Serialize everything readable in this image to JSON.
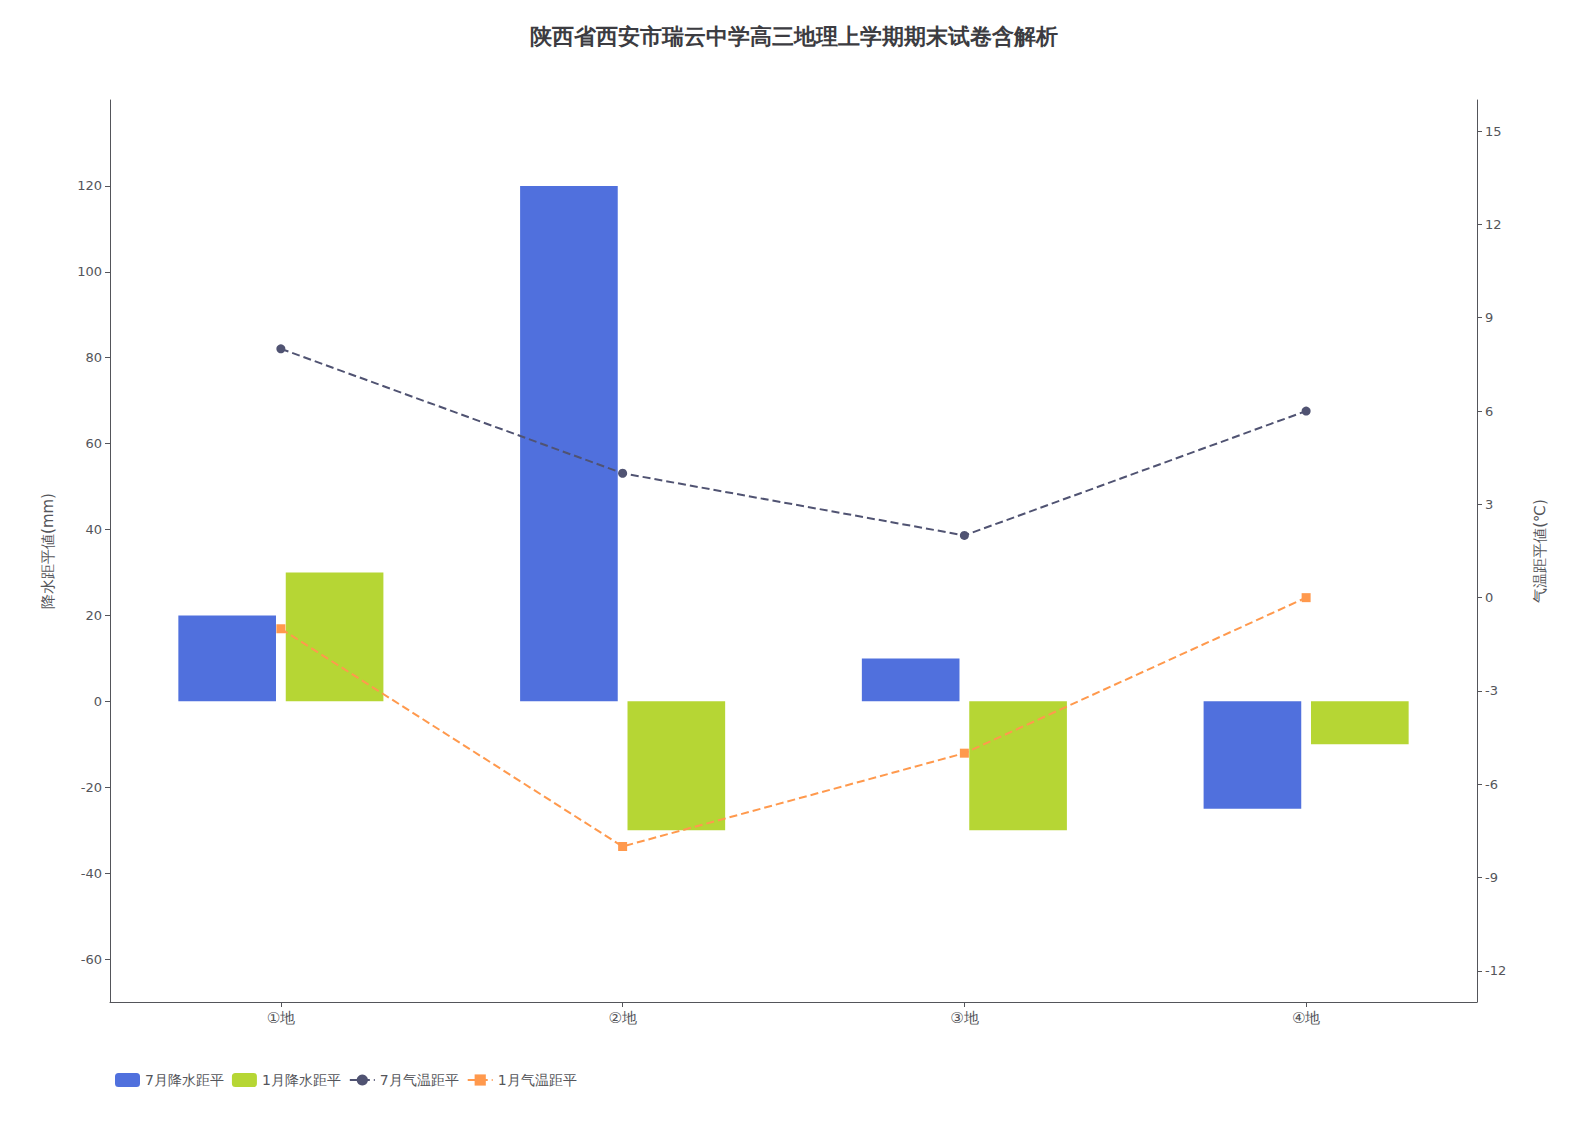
{
  "chart_data": {
    "type": "bar",
    "title": "陕西省西安市瑞云中学高三地理上学期期末试卷含解析",
    "categories": [
      "①地",
      "②地",
      "③地",
      "④地"
    ],
    "series": [
      {
        "name": "7月降水距平",
        "type": "bar",
        "values": [
          20,
          120,
          10,
          -25
        ]
      },
      {
        "name": "1月降水距平",
        "type": "bar",
        "values": [
          30,
          -30,
          -30,
          -10
        ]
      },
      {
        "name": "7月气温距平",
        "type": "line",
        "axis": "y2",
        "marker": "circle",
        "line_style": "dashed",
        "values": [
          8,
          4,
          2,
          6
        ]
      },
      {
        "name": "1月气温距平",
        "type": "line",
        "axis": "y2",
        "marker": "square",
        "line_style": "dashed",
        "values": [
          -1,
          -8,
          -5,
          0
        ]
      }
    ],
    "ylabel": "降水距平値(mm)",
    "y2label": "气温距平値(℃)",
    "ylim": [
      -70,
      140
    ],
    "yticks": [
      -60,
      -40,
      -20,
      0,
      20,
      40,
      60,
      80,
      100,
      120
    ],
    "y2lim": [
      -13,
      16
    ],
    "y2ticks": [
      -12,
      -9,
      -6,
      -3,
      0,
      3,
      6,
      9,
      12,
      15
    ],
    "grid": false,
    "legend": "lower left"
  }
}
